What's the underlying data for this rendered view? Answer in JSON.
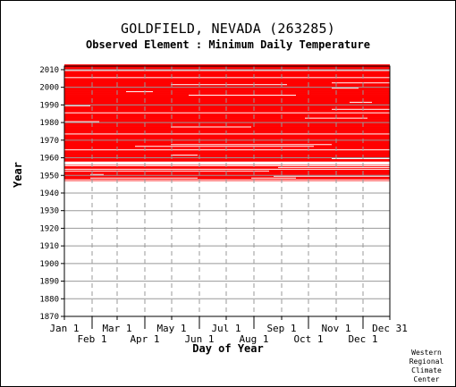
{
  "chart_data": {
    "type": "heatmap",
    "title": "GOLDFIELD, NEVADA   (263285)",
    "subtitle": "Observed Element : Minimum Daily Temperature",
    "xlabel": "Day of Year",
    "ylabel": "Year",
    "xlim": [
      1,
      365
    ],
    "ylim": [
      1870,
      2012
    ],
    "y_ticks": [
      1870,
      1880,
      1890,
      1900,
      1910,
      1920,
      1930,
      1940,
      1950,
      1960,
      1970,
      1980,
      1990,
      2000,
      2010
    ],
    "x_ticks_top_row": [
      {
        "label": "Jan 1",
        "day": 1
      },
      {
        "label": "Mar 1",
        "day": 60
      },
      {
        "label": "May 1",
        "day": 121
      },
      {
        "label": "Jul 1",
        "day": 182
      },
      {
        "label": "Sep 1",
        "day": 244
      },
      {
        "label": "Nov 1",
        "day": 305
      },
      {
        "label": "Dec 31",
        "day": 365
      }
    ],
    "x_ticks_bottom_row": [
      {
        "label": "Feb 1",
        "day": 32
      },
      {
        "label": "Apr 1",
        "day": 91
      },
      {
        "label": "Jun 1",
        "day": 152
      },
      {
        "label": "Aug 1",
        "day": 213
      },
      {
        "label": "Oct 1",
        "day": 274
      },
      {
        "label": "Dec 1",
        "day": 335
      }
    ],
    "data_color": "#ff0000",
    "grid": true,
    "observed_year_span": [
      1947,
      2012
    ],
    "full_gap_years": [
      1956,
      1957
    ],
    "partial_gaps": [
      {
        "year": 1947,
        "from_day": 1,
        "to_day": 365
      },
      {
        "year": 1948,
        "from_day": 30,
        "to_day": 150
      },
      {
        "year": 1948,
        "from_day": 210,
        "to_day": 260
      },
      {
        "year": 1949,
        "from_day": 235,
        "to_day": 365
      },
      {
        "year": 1950,
        "from_day": 30,
        "to_day": 45
      },
      {
        "year": 1952,
        "from_day": 1,
        "to_day": 230
      },
      {
        "year": 1953,
        "from_day": 1,
        "to_day": 365
      },
      {
        "year": 1954,
        "from_day": 240,
        "to_day": 365
      },
      {
        "year": 1955,
        "from_day": 1,
        "to_day": 365
      },
      {
        "year": 1959,
        "from_day": 300,
        "to_day": 365
      },
      {
        "year": 1961,
        "from_day": 120,
        "to_day": 150
      },
      {
        "year": 1964,
        "from_day": 1,
        "to_day": 365
      },
      {
        "year": 1966,
        "from_day": 80,
        "to_day": 280
      },
      {
        "year": 1967,
        "from_day": 120,
        "to_day": 300
      },
      {
        "year": 1973,
        "from_day": 1,
        "to_day": 365
      },
      {
        "year": 1977,
        "from_day": 120,
        "to_day": 210
      },
      {
        "year": 1980,
        "from_day": 1,
        "to_day": 40
      },
      {
        "year": 1982,
        "from_day": 270,
        "to_day": 340
      },
      {
        "year": 1985,
        "from_day": 1,
        "to_day": 365
      },
      {
        "year": 1987,
        "from_day": 300,
        "to_day": 365
      },
      {
        "year": 1989,
        "from_day": 1,
        "to_day": 30
      },
      {
        "year": 1991,
        "from_day": 320,
        "to_day": 345
      },
      {
        "year": 1995,
        "from_day": 140,
        "to_day": 260
      },
      {
        "year": 1997,
        "from_day": 70,
        "to_day": 100
      },
      {
        "year": 1999,
        "from_day": 300,
        "to_day": 330
      },
      {
        "year": 2001,
        "from_day": 120,
        "to_day": 250
      },
      {
        "year": 2002,
        "from_day": 300,
        "to_day": 365
      },
      {
        "year": 2005,
        "from_day": 1,
        "to_day": 365
      },
      {
        "year": 2009,
        "from_day": 1,
        "to_day": 365
      }
    ]
  },
  "credit": [
    "Western",
    "Regional",
    "Climate",
    "Center"
  ]
}
